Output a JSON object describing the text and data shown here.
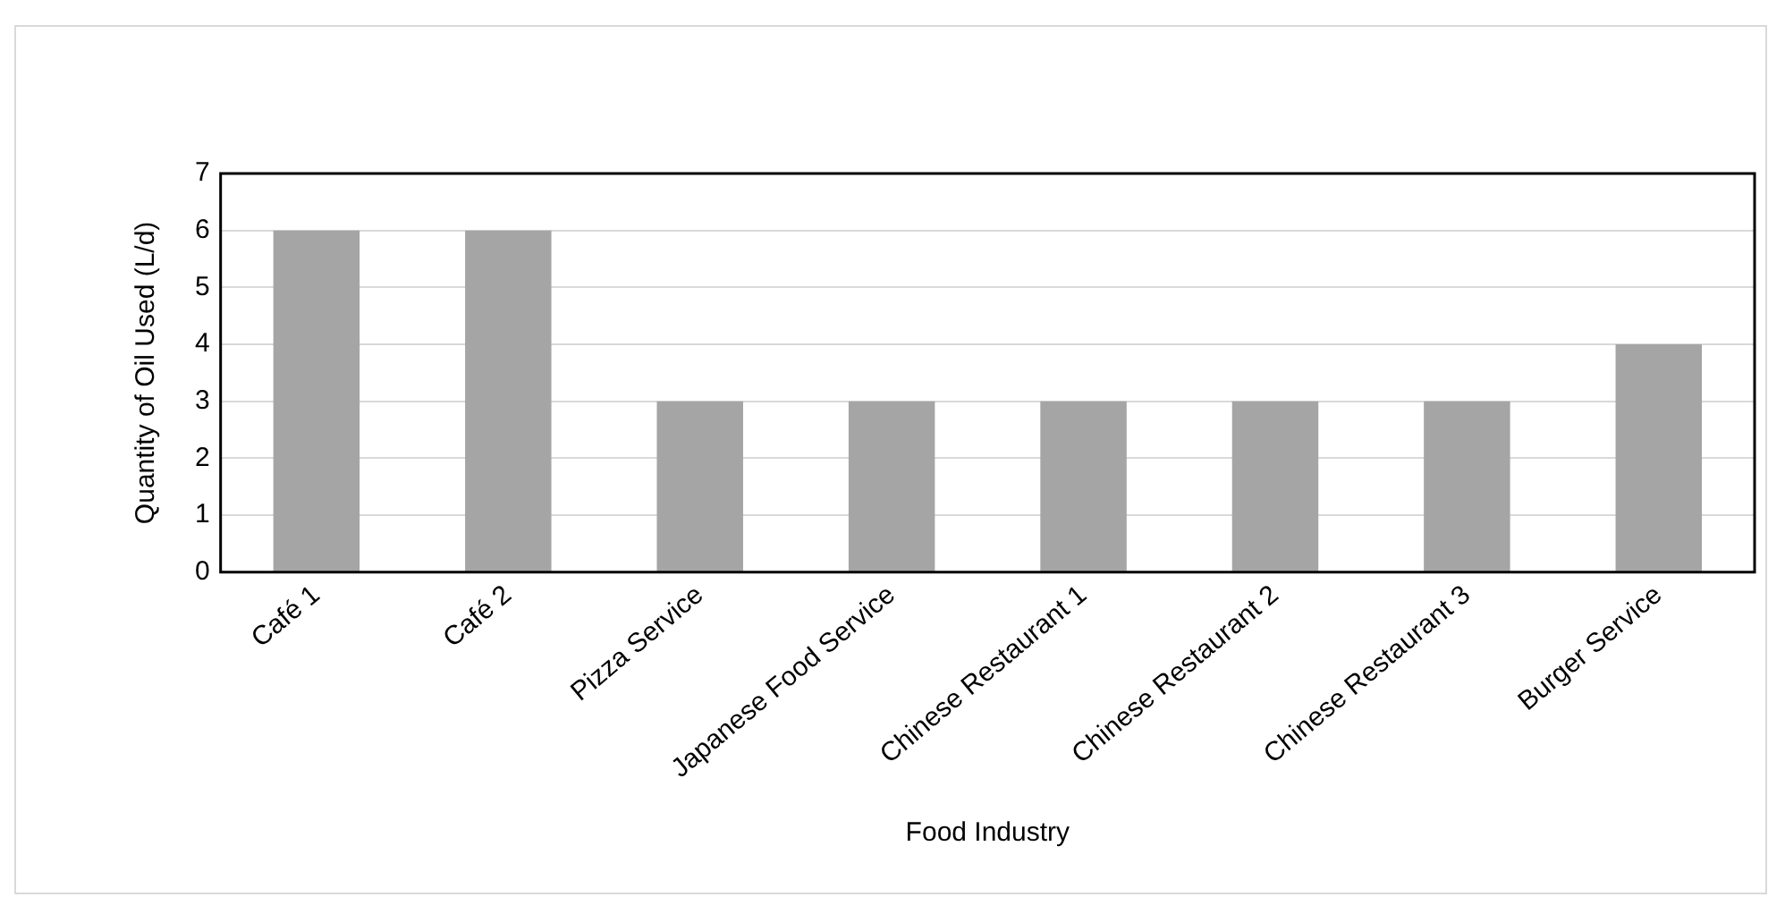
{
  "chart_data": {
    "type": "bar",
    "xlabel": "Food Industry",
    "ylabel": "Quantity of Oil Used (L/d)",
    "categories": [
      "Café 1",
      "Café 2",
      "Pizza Service",
      "Japanese Food Service",
      "Chinese Restaurant 1",
      "Chinese Restaurant 2",
      "Chinese Restaurant 3",
      "Burger Service"
    ],
    "values": [
      6,
      6,
      3,
      3,
      3,
      3,
      3,
      4
    ],
    "color": "#a5a5a5",
    "ylim": [
      0,
      7
    ],
    "yticks": [
      0,
      1,
      2,
      3,
      4,
      5,
      6,
      7
    ],
    "grid": "y",
    "legend": false
  }
}
